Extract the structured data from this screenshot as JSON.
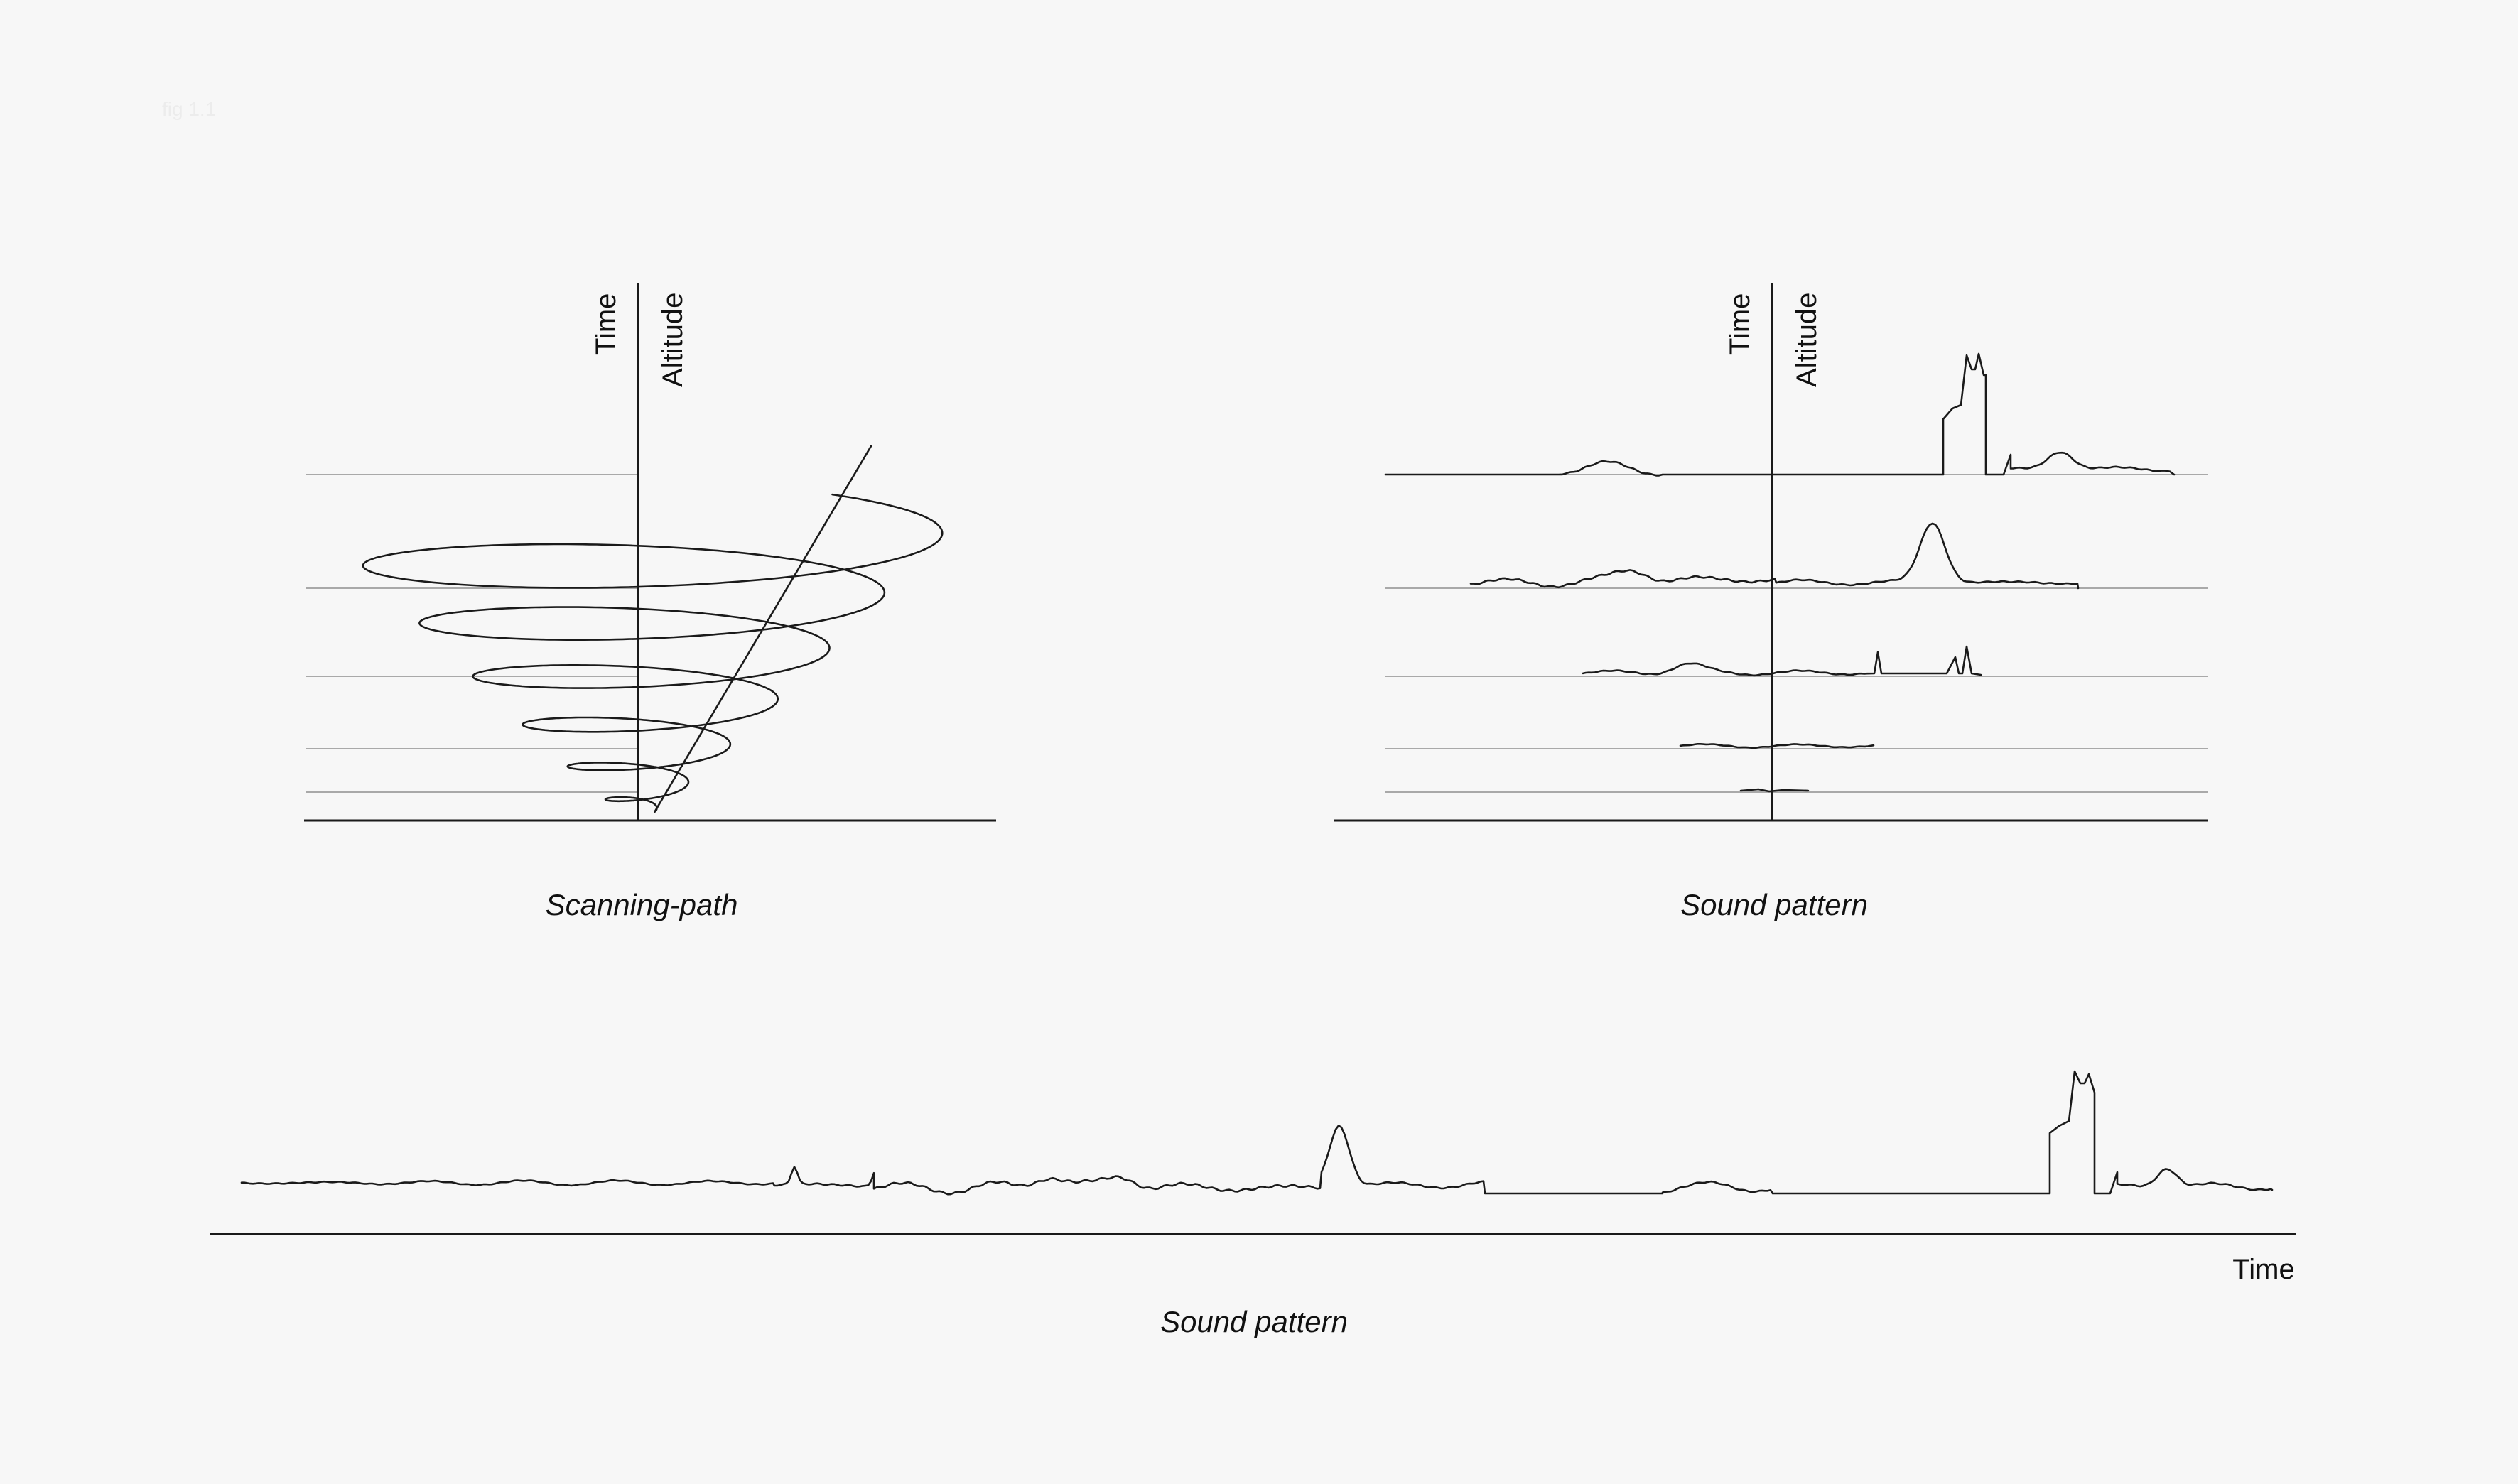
{
  "corner_mark": "fig 1.1",
  "panels": {
    "scanning": {
      "axis_label_time": "Time",
      "axis_label_altitude": "Altitude",
      "caption": "Scanning-path"
    },
    "sound_stack": {
      "axis_label_time": "Time",
      "axis_label_altitude": "Altitude",
      "caption": "Sound pattern"
    },
    "sound_timeline": {
      "axis_label_time": "Time",
      "caption": "Sound pattern"
    }
  },
  "colors": {
    "ink": "#1a1a1a",
    "grid": "#a9a9a9",
    "background": "#f7f7f7"
  }
}
